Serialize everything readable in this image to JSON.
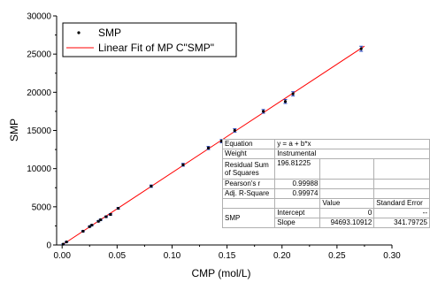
{
  "chart_data": {
    "type": "scatter",
    "xlabel": "CMP (mol/L)",
    "ylabel": "SMP",
    "xlim": [
      -0.005,
      0.3
    ],
    "ylim": [
      0,
      30000
    ],
    "x_ticks": [
      0.0,
      0.05,
      0.1,
      0.15,
      0.2,
      0.25,
      0.3
    ],
    "x_tick_labels": [
      "0.00",
      "0.05",
      "0.10",
      "0.15",
      "0.20",
      "0.25",
      "0.30"
    ],
    "y_ticks": [
      0,
      5000,
      10000,
      15000,
      20000,
      25000,
      30000
    ],
    "y_tick_labels": [
      "0",
      "5000",
      "10000",
      "15000",
      "20000",
      "25000",
      "30000"
    ],
    "grid": false,
    "legend_position": "top-left",
    "series": [
      {
        "name": "SMP",
        "kind": "scatter",
        "color": "#000000",
        "error_color": "#1f3fbf",
        "x": [
          0.001,
          0.004,
          0.019,
          0.025,
          0.027,
          0.033,
          0.035,
          0.04,
          0.044,
          0.051,
          0.081,
          0.11,
          0.133,
          0.145,
          0.157,
          0.183,
          0.203,
          0.21,
          0.272
        ],
        "y": [
          100,
          400,
          1800,
          2400,
          2600,
          3100,
          3300,
          3700,
          4000,
          4800,
          7700,
          10500,
          12700,
          13600,
          15000,
          17500,
          18800,
          19800,
          25700
        ],
        "yerr": [
          60,
          60,
          80,
          80,
          80,
          90,
          90,
          100,
          100,
          110,
          150,
          180,
          200,
          210,
          220,
          240,
          260,
          270,
          330
        ]
      },
      {
        "name": "Linear Fit of MP C\"SMP\"",
        "kind": "line",
        "color": "#ff0000",
        "x": [
          0.0,
          0.275
        ],
        "y": [
          0,
          26040.6
        ]
      }
    ],
    "fit_table": {
      "equation_label": "Equation",
      "equation_value": "y = a + b*x",
      "weight_label": "Weight",
      "weight_value": "Instrumental",
      "rss_label": "Residual Sum of Squares",
      "rss_value": "196.81225",
      "pearson_label": "Pearson's r",
      "pearson_value": "0.99988",
      "adjr_label": "Adj. R-Square",
      "adjr_value": "0.99974",
      "value_header": "Value",
      "stderr_header": "Standard Error",
      "group_label": "SMP",
      "intercept_label": "Intercept",
      "intercept_value": "0",
      "intercept_stderr": "--",
      "slope_label": "Slope",
      "slope_value": "94693.10912",
      "slope_stderr": "341.79725"
    }
  }
}
